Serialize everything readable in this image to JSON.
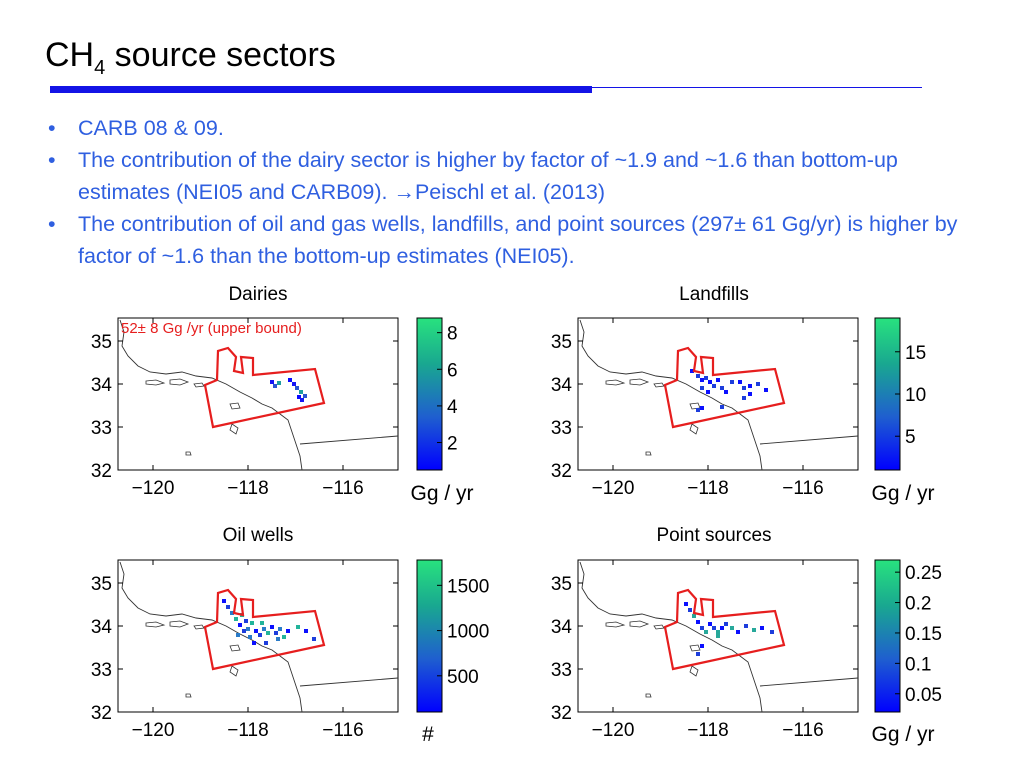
{
  "slide": {
    "title_main": "CH",
    "title_sub": "4",
    "title_rest": " source sectors",
    "accent_color": "#1414e6",
    "bullet_color": "#2f5fe0"
  },
  "bullets": [
    "CARB 08 & 09.",
    "The contribution of the dairy sector is higher by factor of ~1.9 and ~1.6 than bottom-up estimates (NEI05 and CARB09).  →Peischl et al. (2013)",
    "The contribution of oil and gas wells, landfills, and point sources (297± 61 Gg/yr) is higher by factor of ~1.6 than the bottom-up estimates (NEI05)."
  ],
  "chart_data": [
    {
      "type": "heatmap",
      "title": "Dairies",
      "annotation": "52± 8 Gg /yr (upper bound)",
      "x_ticks": [
        "−120",
        "−118",
        "−116"
      ],
      "y_ticks": [
        "35",
        "34",
        "33",
        "32"
      ],
      "xlim": [
        -121.5,
        -115.3
      ],
      "ylim": [
        32,
        35.3
      ],
      "colorbar": {
        "ticks": [
          "8",
          "6",
          "4",
          "2"
        ],
        "tick_values": [
          8,
          6,
          4,
          2
        ],
        "range": [
          0.5,
          8.8
        ],
        "unit": "Gg / yr"
      },
      "colormap": [
        "#0000ff",
        "#1f5fcf",
        "#19a890",
        "#28e27e"
      ]
    },
    {
      "type": "heatmap",
      "title": "Landfills",
      "x_ticks": [
        "−120",
        "−118",
        "−116"
      ],
      "y_ticks": [
        "35",
        "34",
        "33",
        "32"
      ],
      "xlim": [
        -121.5,
        -115.3
      ],
      "ylim": [
        32,
        35.3
      ],
      "colorbar": {
        "ticks": [
          "15",
          "10",
          "5"
        ],
        "tick_values": [
          15,
          10,
          5
        ],
        "range": [
          1,
          19
        ],
        "unit": "Gg / yr"
      },
      "colormap": [
        "#0000ff",
        "#1f5fcf",
        "#19a890",
        "#28e27e"
      ]
    },
    {
      "type": "heatmap",
      "title": "Oil wells",
      "x_ticks": [
        "−120",
        "−118",
        "−116"
      ],
      "y_ticks": [
        "35",
        "34",
        "33",
        "32"
      ],
      "xlim": [
        -121.5,
        -115.3
      ],
      "ylim": [
        32,
        35.3
      ],
      "colorbar": {
        "ticks": [
          "1500",
          "1000",
          "500"
        ],
        "tick_values": [
          1500,
          1000,
          500
        ],
        "range": [
          100,
          1780
        ],
        "unit": "#"
      },
      "colormap": [
        "#0000ff",
        "#1f5fcf",
        "#19a890",
        "#28e27e"
      ]
    },
    {
      "type": "heatmap",
      "title": "Point sources",
      "x_ticks": [
        "−120",
        "−118",
        "−116"
      ],
      "y_ticks": [
        "35",
        "34",
        "33",
        "32"
      ],
      "xlim": [
        -121.5,
        -115.3
      ],
      "ylim": [
        32,
        35.3
      ],
      "colorbar": {
        "ticks": [
          "0.25",
          "0.2",
          "0.15",
          "0.1",
          "0.05"
        ],
        "tick_values": [
          0.25,
          0.2,
          0.15,
          0.1,
          0.05
        ],
        "range": [
          0.02,
          0.27
        ],
        "unit": "Gg / yr"
      },
      "colormap": [
        "#0000ff",
        "#1f5fcf",
        "#19a890",
        "#28e27e"
      ]
    }
  ]
}
